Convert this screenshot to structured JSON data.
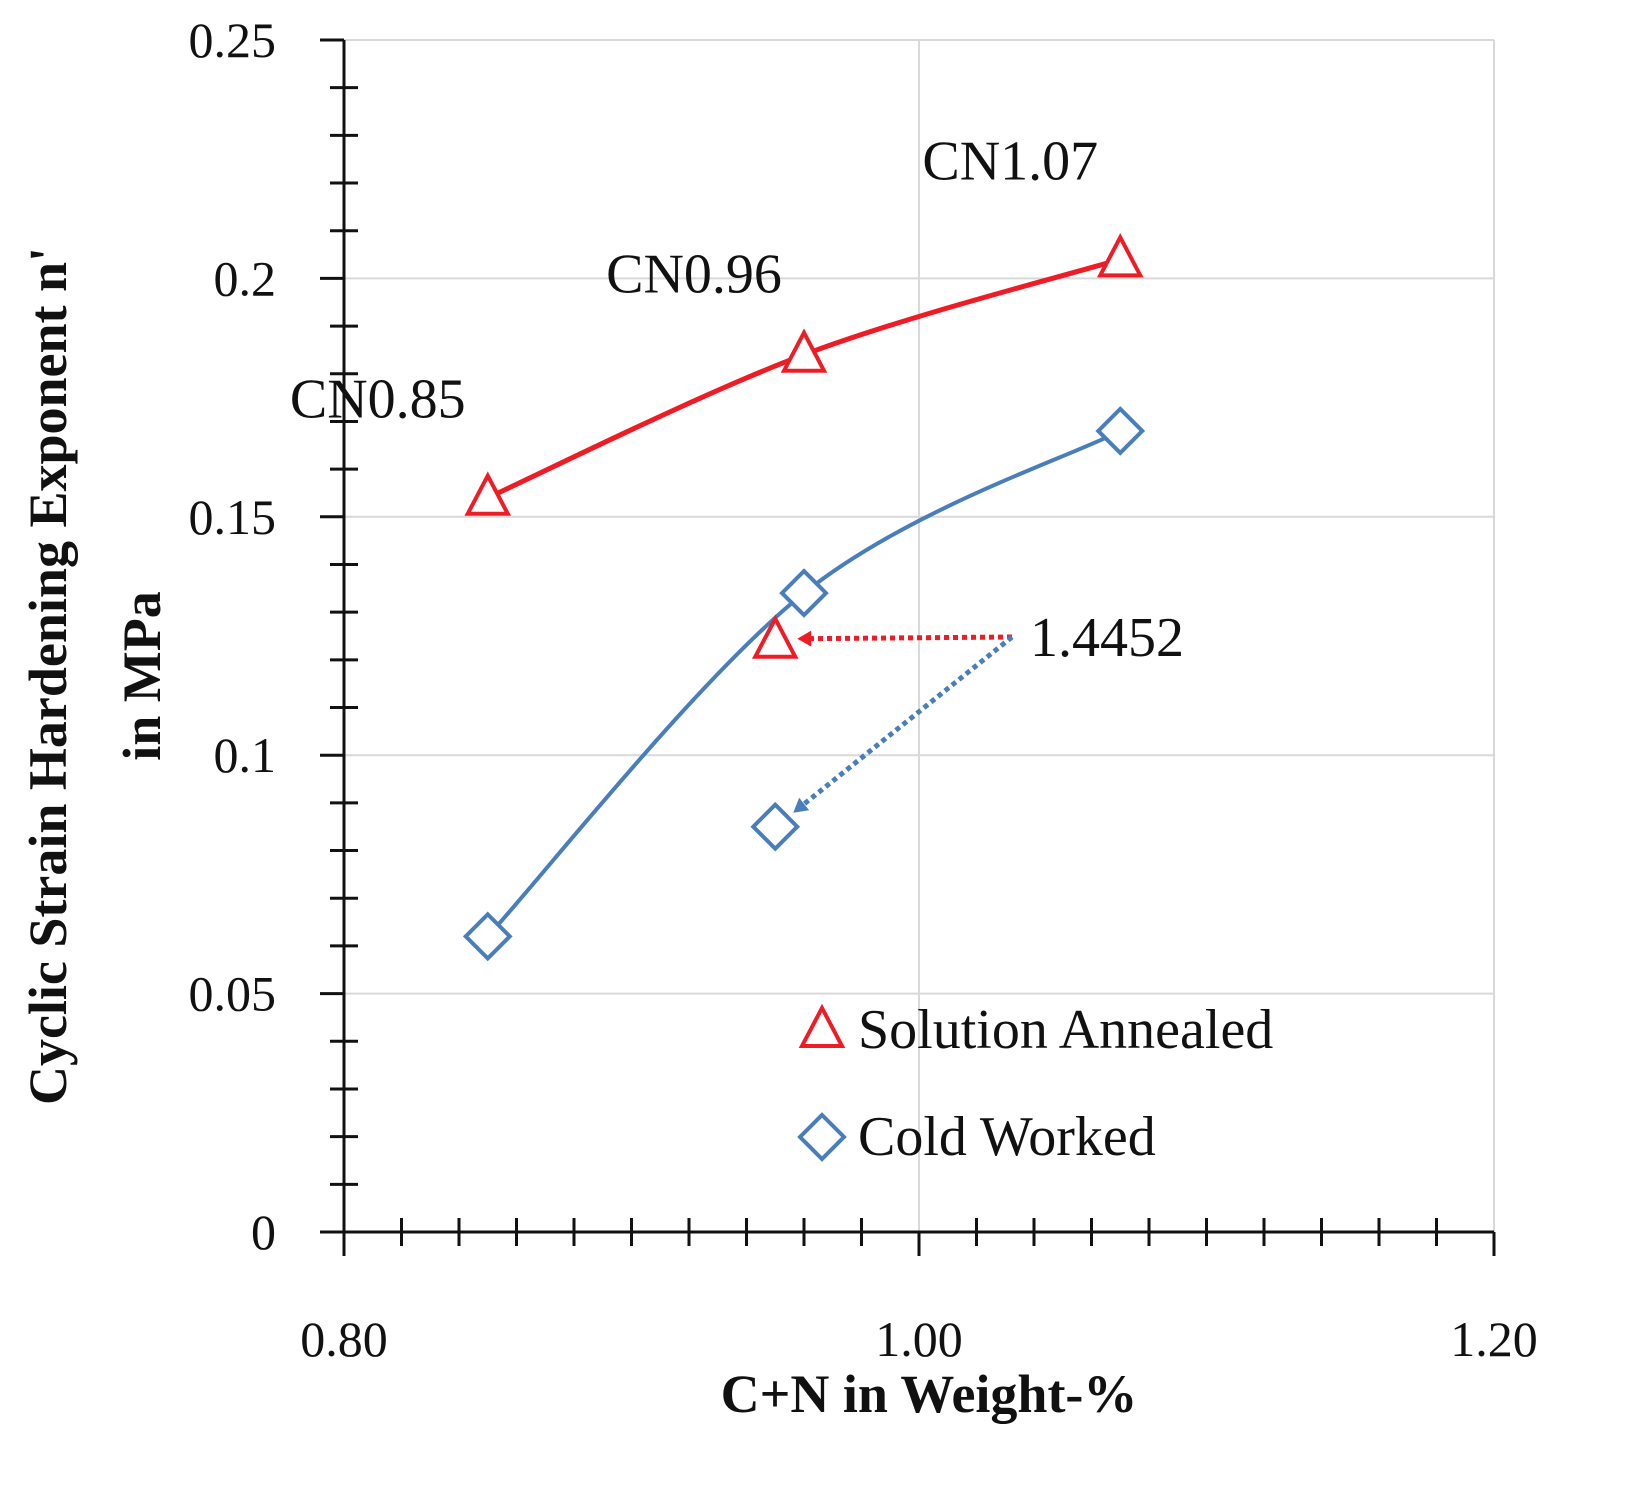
{
  "chart_data": {
    "type": "scatter",
    "xlabel": "C+N in Weight-%",
    "ylabel_line1": "Cyclic Strain Hardening Exponent n'",
    "ylabel_line2": "in MPa",
    "xlim": [
      0.8,
      1.2
    ],
    "ylim": [
      0,
      0.25
    ],
    "x_ticks": [
      0.8,
      1.0,
      1.2
    ],
    "x_tick_labels": [
      "0.80",
      "1.00",
      "1.20"
    ],
    "y_ticks": [
      0,
      0.05,
      0.1,
      0.15,
      0.2,
      0.25
    ],
    "y_tick_labels": [
      "0",
      "0.05",
      "0.1",
      "0.15",
      "0.2",
      "0.25"
    ],
    "grid": true,
    "legend_position": "bottom-right",
    "series": [
      {
        "name": "Solution Annealed",
        "marker": "triangle",
        "color": "#ee1c25",
        "fit_line": true,
        "x": [
          0.85,
          0.96,
          1.07
        ],
        "y": [
          0.154,
          0.184,
          0.204
        ]
      },
      {
        "name": "Cold Worked",
        "marker": "diamond",
        "color": "#4a7ebb",
        "fit_line": true,
        "x": [
          0.85,
          0.96,
          1.07
        ],
        "y": [
          0.062,
          0.134,
          0.168
        ]
      }
    ],
    "point_labels": [
      {
        "text": "CN0.85",
        "x": 0.85,
        "y": 0.154
      },
      {
        "text": "CN0.96",
        "x": 0.96,
        "y": 0.184
      },
      {
        "text": "CN1.07",
        "x": 1.07,
        "y": 0.204
      }
    ],
    "annotation": {
      "text": "1.4452",
      "points": [
        {
          "series": "Solution Annealed",
          "marker": "triangle",
          "color": "#ee1c25",
          "x": 0.95,
          "y": 0.124
        },
        {
          "series": "Cold Worked",
          "marker": "diamond",
          "color": "#4a7ebb",
          "x": 0.95,
          "y": 0.085
        }
      ]
    }
  }
}
